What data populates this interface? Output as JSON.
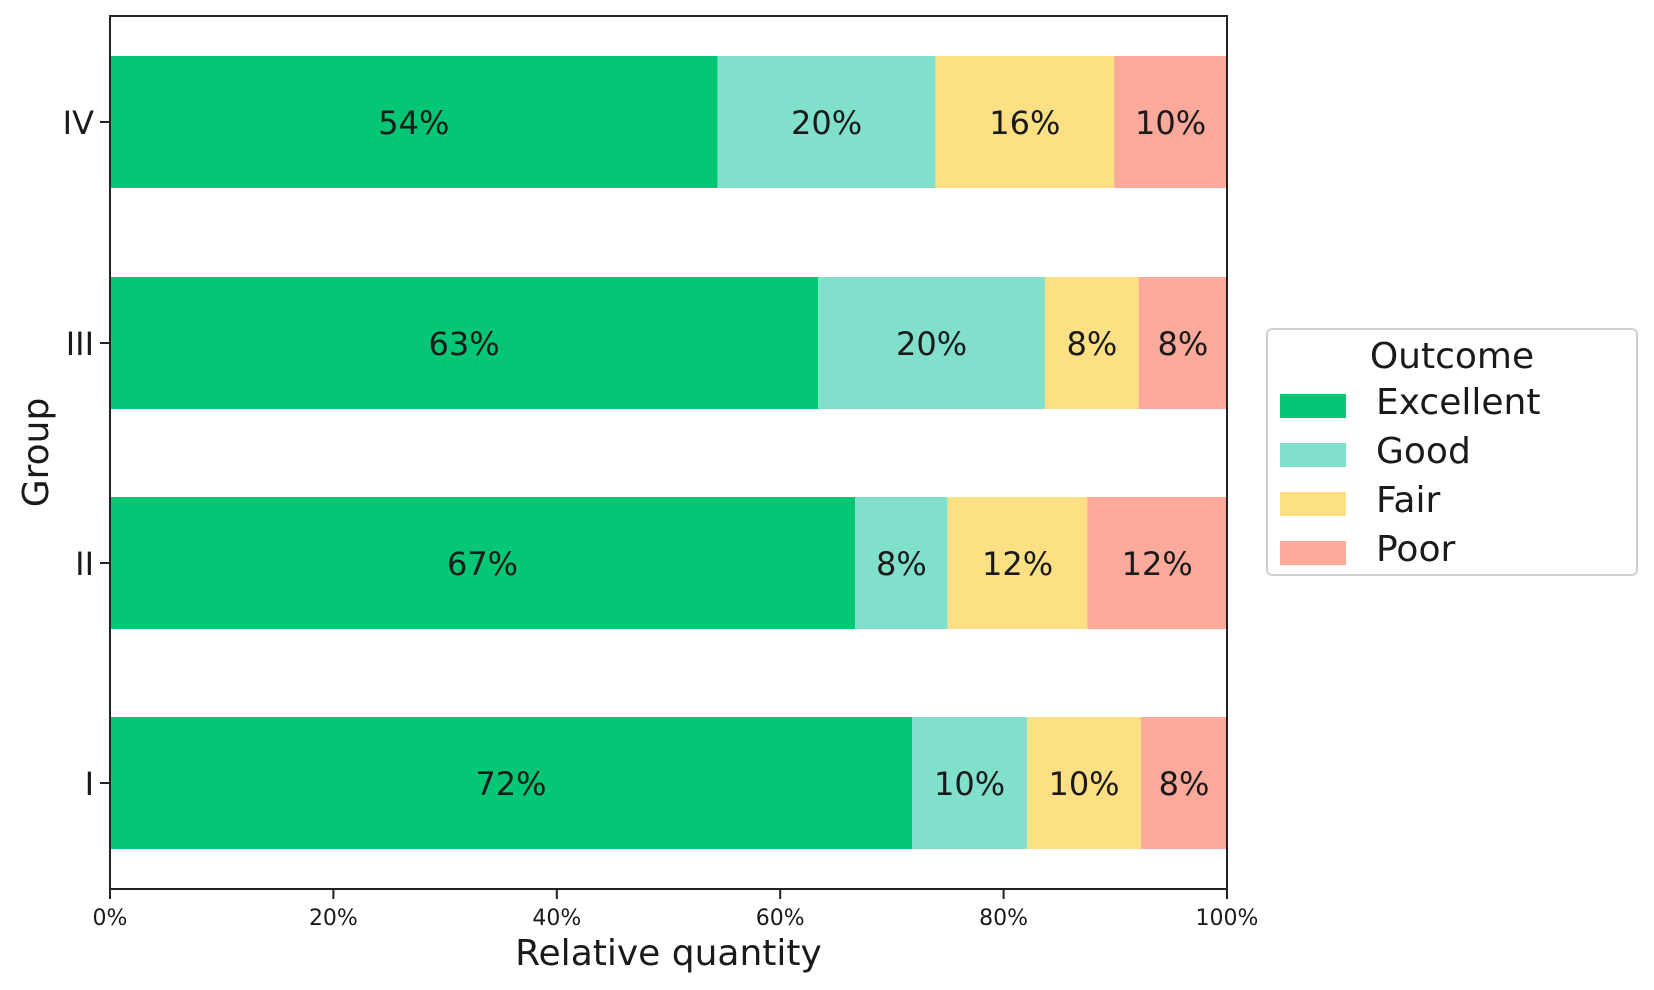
{
  "chart_data": {
    "type": "bar",
    "orientation": "horizontal",
    "stacked": true,
    "title": "",
    "xlabel": "Relative quantity",
    "ylabel": "Group",
    "xlim": [
      0,
      100
    ],
    "x_ticks": [
      "0%",
      "20%",
      "40%",
      "60%",
      "80%",
      "100%"
    ],
    "categories": [
      "I",
      "II",
      "III",
      "IV"
    ],
    "legend_title": "Outcome",
    "legend_position": "center-right",
    "series": [
      {
        "name": "Excellent",
        "color": "#03c775",
        "values": [
          71.8,
          66.7,
          63.4,
          54.4
        ],
        "labels": [
          "72%",
          "67%",
          "63%",
          "54%"
        ]
      },
      {
        "name": "Good",
        "color": "#80e0cc",
        "values": [
          10.3,
          8.3,
          20.3,
          19.5
        ],
        "labels": [
          "10%",
          "8%",
          "20%",
          "20%"
        ]
      },
      {
        "name": "Fair",
        "color": "#fde083",
        "values": [
          10.2,
          12.5,
          8.4,
          16.0
        ],
        "labels": [
          "10%",
          "12%",
          "8%",
          "16%"
        ]
      },
      {
        "name": "Poor",
        "color": "#fba99b",
        "values": [
          7.7,
          12.5,
          7.9,
          10.1
        ],
        "labels": [
          "8%",
          "12%",
          "8%",
          "10%"
        ]
      }
    ]
  }
}
